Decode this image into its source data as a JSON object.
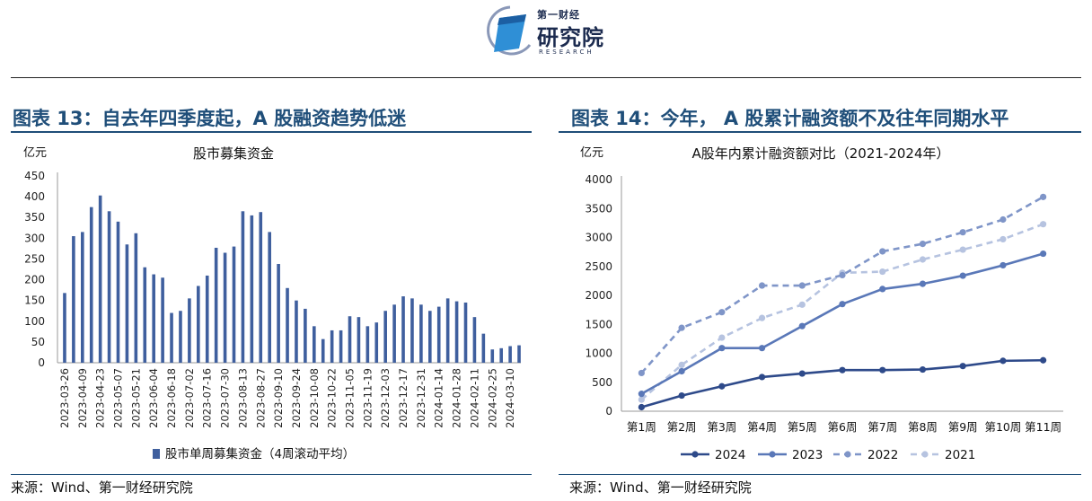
{
  "header": {
    "logo_brand": "第一财经",
    "logo_name": "研究院",
    "logo_sub": "RESEARCH"
  },
  "figures": [
    {
      "title": "图表 13：自去年四季度起，A 股融资趋势低迷",
      "source": "来源：Wind、第一财经研究院"
    },
    {
      "title": "图表 14：今年， A 股累计融资额不及往年同期水平",
      "source": "来源：Wind、第一财经研究院"
    }
  ],
  "colors": {
    "title": "#1f4e79",
    "bar": "#3f5f9e",
    "s2024": "#2e4a8a",
    "s2023": "#5a78b8",
    "s2022": "#7f95c8",
    "s2021": "#b6c3e0"
  },
  "chart_data": [
    {
      "type": "bar",
      "title": "股市募集资金",
      "ylabel": "亿元",
      "ylim": [
        0,
        450
      ],
      "yticks": [
        0,
        50,
        100,
        150,
        200,
        250,
        300,
        350,
        400,
        450
      ],
      "legend": "股市单周募集资金（4周滚动平均）",
      "legend_position": "bottom",
      "tick_labels": [
        "2023-03-26",
        "2023-04-09",
        "2023-04-23",
        "2023-05-07",
        "2023-05-21",
        "2023-06-04",
        "2023-06-18",
        "2023-07-02",
        "2023-07-16",
        "2023-07-30",
        "2023-08-13",
        "2023-08-27",
        "2023-09-10",
        "2023-09-24",
        "2023-10-08",
        "2023-10-22",
        "2023-11-05",
        "2023-11-19",
        "2023-12-03",
        "2023-12-17",
        "2023-12-31",
        "2024-01-14",
        "2024-01-28",
        "2024-02-11",
        "2024-02-25",
        "2024-03-10"
      ],
      "values": [
        168,
        305,
        315,
        375,
        403,
        365,
        340,
        285,
        312,
        230,
        213,
        205,
        120,
        125,
        155,
        185,
        210,
        277,
        265,
        280,
        365,
        355,
        363,
        315,
        238,
        180,
        150,
        130,
        88,
        57,
        78,
        78,
        112,
        110,
        88,
        97,
        125,
        140,
        160,
        155,
        140,
        125,
        135,
        155,
        148,
        145,
        110,
        70,
        32,
        35,
        40,
        42
      ]
    },
    {
      "type": "line",
      "title": "A股年内累计融资额对比（2021-2024年）",
      "ylabel": "亿元",
      "ylim": [
        0,
        4000
      ],
      "yticks": [
        0,
        500,
        1000,
        1500,
        2000,
        2500,
        3000,
        3500,
        4000
      ],
      "categories": [
        "第1周",
        "第2周",
        "第3周",
        "第4周",
        "第5周",
        "第6周",
        "第7周",
        "第8周",
        "第9周",
        "第10周",
        "第11周"
      ],
      "legend_position": "bottom",
      "series": [
        {
          "name": "2024",
          "style": "solid",
          "values": [
            70,
            270,
            430,
            590,
            650,
            710,
            710,
            720,
            780,
            870,
            880
          ]
        },
        {
          "name": "2023",
          "style": "solid",
          "values": [
            300,
            690,
            1090,
            1090,
            1470,
            1850,
            2110,
            2200,
            2340,
            2520,
            2720
          ]
        },
        {
          "name": "2022",
          "style": "dashed",
          "values": [
            660,
            1440,
            1710,
            2170,
            2170,
            2350,
            2760,
            2890,
            3090,
            3310,
            3700
          ]
        },
        {
          "name": "2021",
          "style": "dashed",
          "values": [
            200,
            800,
            1270,
            1610,
            1840,
            2390,
            2410,
            2620,
            2790,
            2970,
            3230
          ]
        }
      ]
    }
  ]
}
